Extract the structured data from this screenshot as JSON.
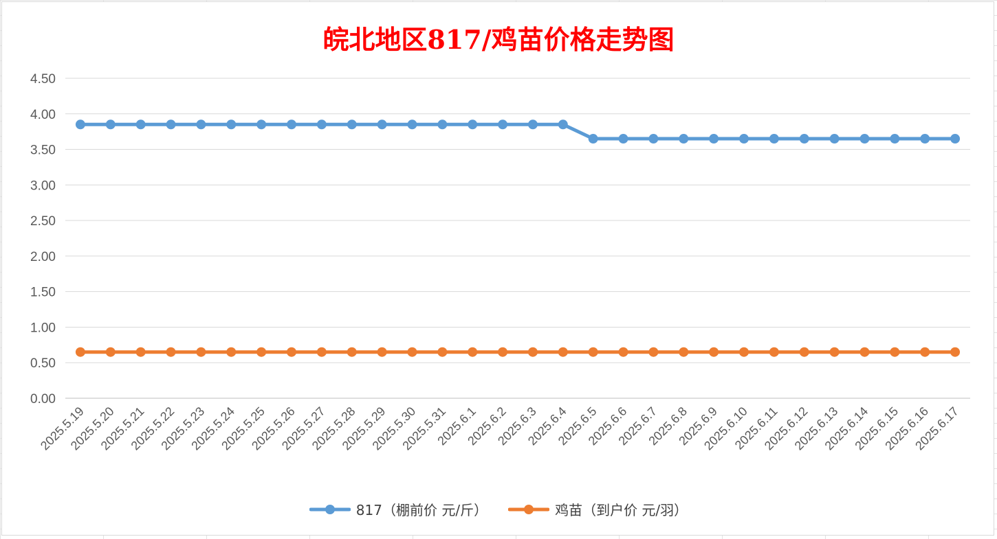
{
  "chart_data": {
    "type": "line",
    "title": "皖北地区817/鸡苗价格走势图",
    "categories": [
      "2025.5.19",
      "2025.5.20",
      "2025.5.21",
      "2025.5.22",
      "2025.5.23",
      "2025.5.24",
      "2025.5.25",
      "2025.5.26",
      "2025.5.27",
      "2025.5.28",
      "2025.5.29",
      "2025.5.30",
      "2025.5.31",
      "2025.6.1",
      "2025.6.2",
      "2025.6.3",
      "2025.6.4",
      "2025.6.5",
      "2025.6.6",
      "2025.6.7",
      "2025.6.8",
      "2025.6.9",
      "2025.6.10",
      "2025.6.11",
      "2025.6.12",
      "2025.6.13",
      "2025.6.14",
      "2025.6.15",
      "2025.6.16",
      "2025.6.17"
    ],
    "series": [
      {
        "name": "817（棚前价 元/斤）",
        "color": "#5b9bd5",
        "values": [
          3.85,
          3.85,
          3.85,
          3.85,
          3.85,
          3.85,
          3.85,
          3.85,
          3.85,
          3.85,
          3.85,
          3.85,
          3.85,
          3.85,
          3.85,
          3.85,
          3.85,
          3.65,
          3.65,
          3.65,
          3.65,
          3.65,
          3.65,
          3.65,
          3.65,
          3.65,
          3.65,
          3.65,
          3.65,
          3.65
        ]
      },
      {
        "name": "鸡苗（到户价 元/羽）",
        "color": "#ed7d31",
        "values": [
          0.65,
          0.65,
          0.65,
          0.65,
          0.65,
          0.65,
          0.65,
          0.65,
          0.65,
          0.65,
          0.65,
          0.65,
          0.65,
          0.65,
          0.65,
          0.65,
          0.65,
          0.65,
          0.65,
          0.65,
          0.65,
          0.65,
          0.65,
          0.65,
          0.65,
          0.65,
          0.65,
          0.65,
          0.65,
          0.65
        ]
      }
    ],
    "yticks": [
      "0.00",
      "0.50",
      "1.00",
      "1.50",
      "2.00",
      "2.50",
      "3.00",
      "3.50",
      "4.00",
      "4.50"
    ],
    "ylim": [
      0,
      4.5
    ],
    "grid": true,
    "legend_position": "bottom"
  }
}
